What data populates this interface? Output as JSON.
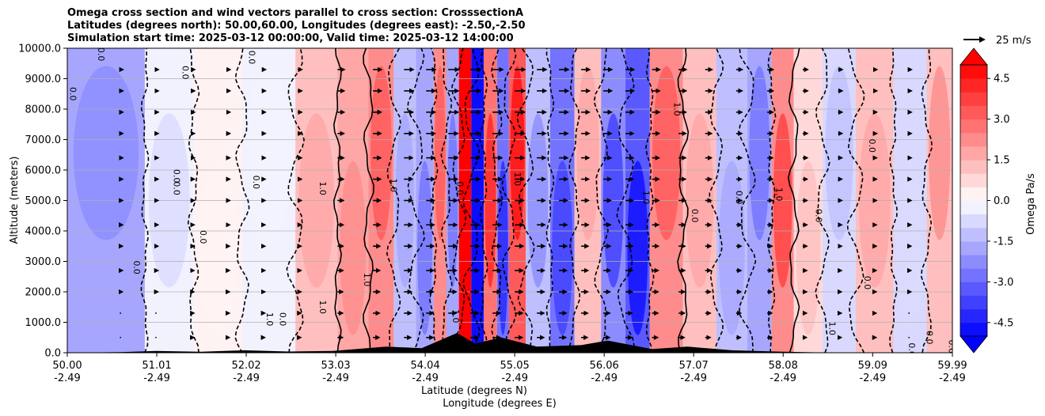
{
  "chart_data": {
    "type": "heatmap",
    "title_lines": [
      "Omega cross section and wind vectors parallel to cross section: CrosssectionA",
      "Latitudes (degrees north): 50.00,60.00, Longitudes (degrees east): -2.50,-2.50",
      "Simulation start time: 2025-03-12 00:00:00, Valid time: 2025-03-12 14:00:00"
    ],
    "ylabel": "Altitude (meters)",
    "xlabel_lines": [
      "Latitude (degrees N)",
      "Longitude (degrees E)"
    ],
    "y_ticks": [
      "0.0",
      "1000.0",
      "2000.0",
      "3000.0",
      "4000.0",
      "5000.0",
      "6000.0",
      "7000.0",
      "8000.0",
      "9000.0",
      "10000.0"
    ],
    "ylim": [
      0,
      10000
    ],
    "xlim": [
      50.0,
      59.99
    ],
    "grid": "horizontal",
    "x_ticks": [
      {
        "lat": "50.00",
        "lon": "-2.49"
      },
      {
        "lat": "51.01",
        "lon": "-2.49"
      },
      {
        "lat": "52.02",
        "lon": "-2.49"
      },
      {
        "lat": "53.03",
        "lon": "-2.49"
      },
      {
        "lat": "54.04",
        "lon": "-2.49"
      },
      {
        "lat": "55.05",
        "lon": "-2.49"
      },
      {
        "lat": "56.06",
        "lon": "-2.49"
      },
      {
        "lat": "57.07",
        "lon": "-2.49"
      },
      {
        "lat": "58.08",
        "lon": "-2.49"
      },
      {
        "lat": "59.09",
        "lon": "-2.49"
      },
      {
        "lat": "59.99",
        "lon": "-2.49"
      }
    ],
    "colorbar": {
      "label": "Omega Pa/s",
      "ticks": [
        "-4.5",
        "-3.0",
        "-1.5",
        "0.0",
        "1.5",
        "3.0",
        "4.5"
      ],
      "range": [
        -5.0,
        5.0
      ],
      "extend": "both",
      "colormap": "bwr"
    },
    "quiver_key": "25 m/s",
    "contour_level_label": "0.0",
    "omega_bands": [
      {
        "lat": 50.55,
        "value": -1.6
      },
      {
        "lat": 51.2,
        "value": -0.4
      },
      {
        "lat": 51.65,
        "value": 0.3
      },
      {
        "lat": 52.3,
        "value": -0.3
      },
      {
        "lat": 52.85,
        "value": 1.2
      },
      {
        "lat": 53.25,
        "value": 1.5
      },
      {
        "lat": 53.55,
        "value": 2.0
      },
      {
        "lat": 53.82,
        "value": -1.2
      },
      {
        "lat": 54.05,
        "value": -2.0
      },
      {
        "lat": 54.22,
        "value": 2.3
      },
      {
        "lat": 54.34,
        "value": -1.8
      },
      {
        "lat": 54.5,
        "value": 5.5
      },
      {
        "lat": 54.62,
        "value": -6.0
      },
      {
        "lat": 54.78,
        "value": 2.8
      },
      {
        "lat": 54.92,
        "value": -2.8
      },
      {
        "lat": 55.05,
        "value": 3.2
      },
      {
        "lat": 55.3,
        "value": -1.5
      },
      {
        "lat": 55.6,
        "value": -2.6
      },
      {
        "lat": 55.85,
        "value": 1.2
      },
      {
        "lat": 56.2,
        "value": -2.4
      },
      {
        "lat": 56.4,
        "value": -3.2
      },
      {
        "lat": 56.75,
        "value": 2.0
      },
      {
        "lat": 57.15,
        "value": 1.2
      },
      {
        "lat": 57.5,
        "value": -1.2
      },
      {
        "lat": 57.85,
        "value": -1.8
      },
      {
        "lat": 58.05,
        "value": 2.4
      },
      {
        "lat": 58.35,
        "value": 0.8
      },
      {
        "lat": 58.7,
        "value": -0.8
      },
      {
        "lat": 59.1,
        "value": 1.2
      },
      {
        "lat": 59.55,
        "value": -0.6
      },
      {
        "lat": 59.85,
        "value": 1.4
      }
    ],
    "wind_rows_m": [
      500,
      1300,
      2000,
      2700,
      3500,
      4200,
      5000,
      5700,
      6400,
      7200,
      7900,
      8600,
      9300
    ],
    "wind_columns": [
      {
        "lat": 50.6,
        "speed": 3
      },
      {
        "lat": 51.0,
        "speed": 3
      },
      {
        "lat": 51.4,
        "speed": 4
      },
      {
        "lat": 51.8,
        "speed": 4
      },
      {
        "lat": 52.2,
        "speed": 4
      },
      {
        "lat": 52.6,
        "speed": 5
      },
      {
        "lat": 53.05,
        "speed": 8
      },
      {
        "lat": 53.45,
        "speed": 10
      },
      {
        "lat": 53.8,
        "speed": 11
      },
      {
        "lat": 54.05,
        "speed": 11
      },
      {
        "lat": 54.3,
        "speed": 12
      },
      {
        "lat": 54.55,
        "speed": 12
      },
      {
        "lat": 54.8,
        "speed": 12
      },
      {
        "lat": 55.05,
        "speed": 12
      },
      {
        "lat": 55.3,
        "speed": 11
      },
      {
        "lat": 55.55,
        "speed": 11
      },
      {
        "lat": 55.8,
        "speed": 10
      },
      {
        "lat": 56.05,
        "speed": 10
      },
      {
        "lat": 56.3,
        "speed": 10
      },
      {
        "lat": 56.6,
        "speed": 9
      },
      {
        "lat": 56.9,
        "speed": 9
      },
      {
        "lat": 57.2,
        "speed": 8
      },
      {
        "lat": 57.55,
        "speed": 7
      },
      {
        "lat": 57.9,
        "speed": 7
      },
      {
        "lat": 58.3,
        "speed": 6
      },
      {
        "lat": 58.7,
        "speed": 5
      },
      {
        "lat": 59.1,
        "speed": 4
      },
      {
        "lat": 59.5,
        "speed": 3
      }
    ],
    "terrain_m": [
      {
        "lat": 50.0,
        "alt": 0
      },
      {
        "lat": 50.6,
        "alt": 20
      },
      {
        "lat": 51.0,
        "alt": 60
      },
      {
        "lat": 51.5,
        "alt": 30
      },
      {
        "lat": 52.0,
        "alt": 80
      },
      {
        "lat": 52.5,
        "alt": 40
      },
      {
        "lat": 53.0,
        "alt": 60
      },
      {
        "lat": 53.6,
        "alt": 200
      },
      {
        "lat": 54.0,
        "alt": 150
      },
      {
        "lat": 54.4,
        "alt": 650
      },
      {
        "lat": 54.6,
        "alt": 300
      },
      {
        "lat": 54.9,
        "alt": 500
      },
      {
        "lat": 55.3,
        "alt": 200
      },
      {
        "lat": 55.8,
        "alt": 250
      },
      {
        "lat": 56.1,
        "alt": 400
      },
      {
        "lat": 56.6,
        "alt": 120
      },
      {
        "lat": 57.0,
        "alt": 200
      },
      {
        "lat": 57.5,
        "alt": 80
      },
      {
        "lat": 58.0,
        "alt": 40
      },
      {
        "lat": 58.5,
        "alt": 10
      },
      {
        "lat": 59.99,
        "alt": 0
      }
    ],
    "contour_labels": [
      {
        "text": "0.0",
        "lat": 50.03,
        "alt": 8500
      },
      {
        "text": "0.0",
        "lat": 50.35,
        "alt": 9800
      },
      {
        "text": "0.0",
        "lat": 50.75,
        "alt": 2800
      },
      {
        "text": "0.0",
        "lat": 51.3,
        "alt": 9200
      },
      {
        "text": "0.0",
        "lat": 51.2,
        "alt": 5800
      },
      {
        "text": "0.0",
        "lat": 51.2,
        "alt": 5400
      },
      {
        "text": "0.0",
        "lat": 51.5,
        "alt": 3800
      },
      {
        "text": "0.0",
        "lat": 52.05,
        "alt": 9700
      },
      {
        "text": "0.0",
        "lat": 52.1,
        "alt": 5600
      },
      {
        "text": "1.0",
        "lat": 52.25,
        "alt": 1100
      },
      {
        "text": "0.0",
        "lat": 52.4,
        "alt": 1100
      },
      {
        "text": "1.0",
        "lat": 52.85,
        "alt": 5400
      },
      {
        "text": "1.0",
        "lat": 52.85,
        "alt": 1500
      },
      {
        "text": "1.0",
        "lat": 53.65,
        "alt": 5500
      },
      {
        "text": "1.0",
        "lat": 53.35,
        "alt": 2400
      },
      {
        "text": "1.0",
        "lat": 54.35,
        "alt": 1200
      },
      {
        "text": "0.0",
        "lat": 54.4,
        "alt": 5400
      },
      {
        "text": "1.0",
        "lat": 55.05,
        "alt": 5700
      },
      {
        "text": "1.0",
        "lat": 56.5,
        "alt": 5100
      },
      {
        "text": "1.0",
        "lat": 56.85,
        "alt": 8000
      },
      {
        "text": "0.0",
        "lat": 57.05,
        "alt": 4500
      },
      {
        "text": "0.0",
        "lat": 57.55,
        "alt": 5100
      },
      {
        "text": "1.0",
        "lat": 58.0,
        "alt": 5200
      },
      {
        "text": "0.0",
        "lat": 58.45,
        "alt": 4500
      },
      {
        "text": "0.0",
        "lat": 59.05,
        "alt": 6800
      },
      {
        "text": "0.0",
        "lat": 59.0,
        "alt": 2300
      },
      {
        "text": "1.0",
        "lat": 58.6,
        "alt": 800
      },
      {
        "text": "0.0",
        "lat": 59.7,
        "alt": 500
      },
      {
        "text": "0.0",
        "lat": 59.5,
        "alt": 100
      },
      {
        "text": "0.0",
        "lat": 59.95,
        "alt": 200
      }
    ]
  }
}
